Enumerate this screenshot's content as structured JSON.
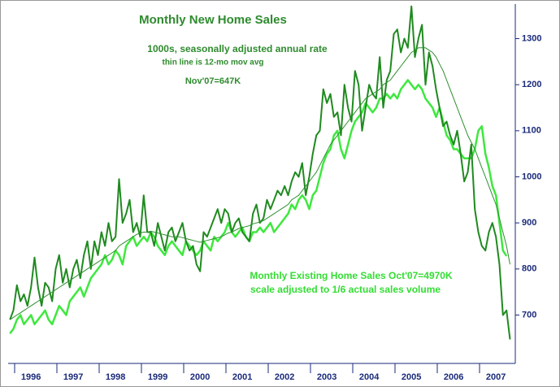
{
  "chart_data": {
    "type": "line",
    "title": "Monthly New Home Sales",
    "subtitle": [
      "1000s, seasonally adjusted annual rate",
      "thin line is 12-mo mov avg",
      "Nov'07=647K"
    ],
    "annotations": [
      "Monthly Existing Home Sales  Oct'07=4970K",
      "scale adjusted to 1/6 actual sales volume"
    ],
    "categories": [
      null,
      null,
      null,
      null,
      null,
      null,
      "1996",
      null,
      null,
      null,
      null,
      null,
      null,
      null,
      null,
      null,
      null,
      null,
      "1997",
      null,
      null,
      null,
      null,
      null,
      null,
      null,
      null,
      null,
      null,
      null,
      "1998",
      null,
      null,
      null,
      null,
      null,
      null,
      null,
      null,
      null,
      null,
      null,
      "1999",
      null,
      null,
      null,
      null,
      null,
      null,
      null,
      null,
      null,
      null,
      null,
      "2000",
      null,
      null,
      null,
      null,
      null,
      null,
      null,
      null,
      null,
      null,
      null,
      "2001",
      null,
      null,
      null,
      null,
      null,
      null,
      null,
      null,
      null,
      null,
      null,
      "2002",
      null,
      null,
      null,
      null,
      null,
      null,
      null,
      null,
      null,
      null,
      null,
      "2003",
      null,
      null,
      null,
      null,
      null,
      null,
      null,
      null,
      null,
      null,
      null,
      "2004",
      null,
      null,
      null,
      null,
      null,
      null,
      null,
      null,
      null,
      null,
      null,
      "2005",
      null,
      null,
      null,
      null,
      null,
      null,
      null,
      null,
      null,
      null,
      null,
      "2006",
      null,
      null,
      null,
      null,
      null,
      null,
      null,
      null,
      null,
      null,
      null,
      "2007",
      null,
      null,
      null,
      null
    ],
    "series": [
      {
        "color": "#1f8a1f",
        "width": 2,
        "values": [
          690,
          710,
          765,
          730,
          745,
          720,
          760,
          825,
          760,
          720,
          770,
          760,
          730,
          800,
          830,
          770,
          800,
          760,
          800,
          820,
          780,
          830,
          860,
          800,
          860,
          830,
          880,
          850,
          900,
          860,
          870,
          995,
          900,
          920,
          950,
          880,
          900,
          870,
          960,
          880,
          880,
          850,
          900,
          870,
          840,
          880,
          890,
          860,
          880,
          900,
          860,
          840,
          850,
          810,
          795,
          880,
          870,
          890,
          910,
          930,
          900,
          930,
          920,
          880,
          900,
          910,
          880,
          870,
          860,
          920,
          940,
          900,
          910,
          950,
          930,
          950,
          970,
          960,
          980,
          960,
          990,
          1010,
          1000,
          1030,
          960,
          1000,
          1050,
          1090,
          1100,
          1190,
          1160,
          1180,
          1130,
          1140,
          1090,
          1200,
          1150,
          1120,
          1230,
          1200,
          1100,
          1150,
          1200,
          1180,
          1170,
          1260,
          1150,
          1210,
          1230,
          1310,
          1320,
          1270,
          1300,
          1280,
          1370,
          1260,
          1300,
          1330,
          1200,
          1270,
          1240,
          1190,
          1150,
          1110,
          1120,
          1090,
          1070,
          1100,
          1050,
          990,
          1010,
          1070,
          930,
          880,
          850,
          840,
          880,
          900,
          870,
          810,
          700,
          710,
          647
        ]
      },
      {
        "color": "#2c8f2c",
        "width": 1,
        "values": [
          690,
          695,
          700,
          705,
          710,
          715,
          720,
          725,
          730,
          735,
          740,
          745,
          750,
          755,
          760,
          765,
          770,
          775,
          780,
          785,
          790,
          795,
          800,
          805,
          810,
          815,
          820,
          825,
          830,
          835,
          840,
          850,
          855,
          860,
          865,
          870,
          875,
          878,
          880,
          880,
          882,
          880,
          878,
          876,
          874,
          872,
          870,
          870,
          870,
          868,
          866,
          864,
          862,
          860,
          858,
          860,
          862,
          864,
          866,
          868,
          870,
          874,
          878,
          880,
          884,
          888,
          890,
          892,
          894,
          898,
          900,
          902,
          905,
          910,
          915,
          920,
          925,
          930,
          935,
          940,
          950,
          955,
          960,
          970,
          980,
          990,
          1000,
          1010,
          1025,
          1040,
          1055,
          1070,
          1080,
          1090,
          1100,
          1110,
          1120,
          1130,
          1140,
          1150,
          1160,
          1170,
          1175,
          1180,
          1185,
          1190,
          1200,
          1205,
          1210,
          1220,
          1230,
          1240,
          1250,
          1260,
          1270,
          1275,
          1280,
          1280,
          1280,
          1275,
          1270,
          1260,
          1245,
          1230,
          1210,
          1190,
          1170,
          1150,
          1130,
          1110,
          1090,
          1075,
          1060,
          1040,
          1020,
          1000,
          980,
          960,
          940,
          910,
          880,
          850,
          810
        ]
      },
      {
        "color": "#3ee83e",
        "width": 2.5,
        "values": [
          660,
          670,
          690,
          700,
          680,
          690,
          700,
          680,
          690,
          700,
          710,
          690,
          680,
          700,
          720,
          710,
          700,
          730,
          740,
          750,
          760,
          740,
          760,
          780,
          790,
          800,
          810,
          830,
          810,
          820,
          840,
          830,
          810,
          850,
          860,
          870,
          850,
          860,
          870,
          860,
          880,
          870,
          850,
          840,
          830,
          850,
          860,
          850,
          840,
          830,
          860,
          850,
          840,
          830,
          840,
          860,
          850,
          840,
          870,
          860,
          870,
          880,
          900,
          880,
          870,
          880,
          890,
          870,
          860,
          880,
          880,
          890,
          880,
          890,
          900,
          880,
          890,
          900,
          910,
          920,
          940,
          930,
          950,
          960,
          950,
          930,
          960,
          970,
          1000,
          1030,
          1050,
          1060,
          1090,
          1100,
          1060,
          1040,
          1070,
          1100,
          1120,
          1130,
          1140,
          1160,
          1150,
          1140,
          1150,
          1170,
          1170,
          1180,
          1170,
          1180,
          1170,
          1190,
          1200,
          1210,
          1200,
          1190,
          1200,
          1190,
          1170,
          1160,
          1150,
          1130,
          1150,
          1120,
          1090,
          1080,
          1060,
          1060,
          1050,
          1040,
          1040,
          1040,
          1060,
          1100,
          1110,
          1050,
          1020,
          980,
          960,
          900,
          840,
          828,
          null
        ]
      }
    ],
    "ylim": [
      595,
      1375
    ],
    "yticks": [
      700,
      800,
      900,
      1000,
      1100,
      1200,
      1300
    ],
    "grid": false
  }
}
